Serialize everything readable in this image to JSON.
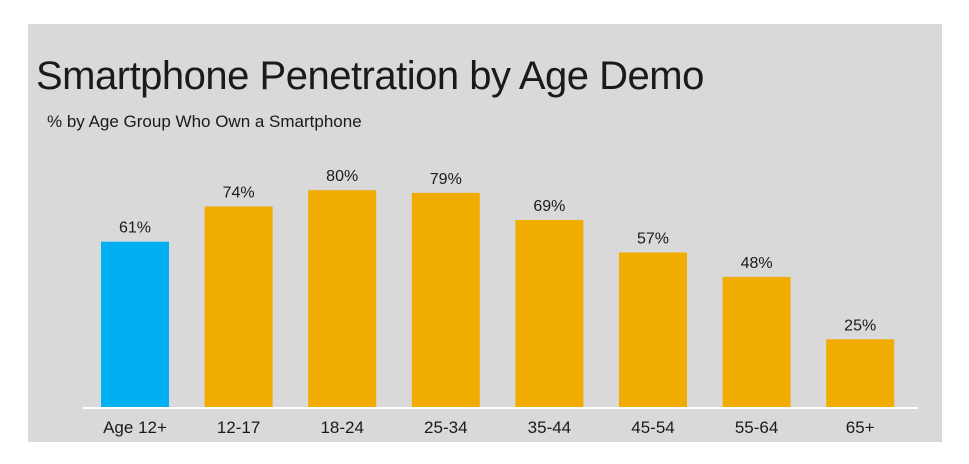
{
  "chart_data": {
    "type": "bar",
    "title": "Smartphone Penetration by Age Demo",
    "subtitle": "% by Age Group Who Own a Smartphone",
    "categories": [
      "Age 12+",
      "12-17",
      "18-24",
      "25-34",
      "35-44",
      "45-54",
      "55-64",
      "65+"
    ],
    "values": [
      61,
      74,
      80,
      79,
      69,
      57,
      48,
      25
    ],
    "value_labels": [
      "61%",
      "74%",
      "80%",
      "79%",
      "69%",
      "57%",
      "48%",
      "25%"
    ],
    "ylim": [
      0,
      100
    ],
    "grid": false,
    "legend": "none",
    "colors": {
      "highlight": "#00b0f0",
      "default": "#f0ac00",
      "axis": "#ffffff",
      "text": "#1a1a1a"
    },
    "highlight_index": 0
  }
}
